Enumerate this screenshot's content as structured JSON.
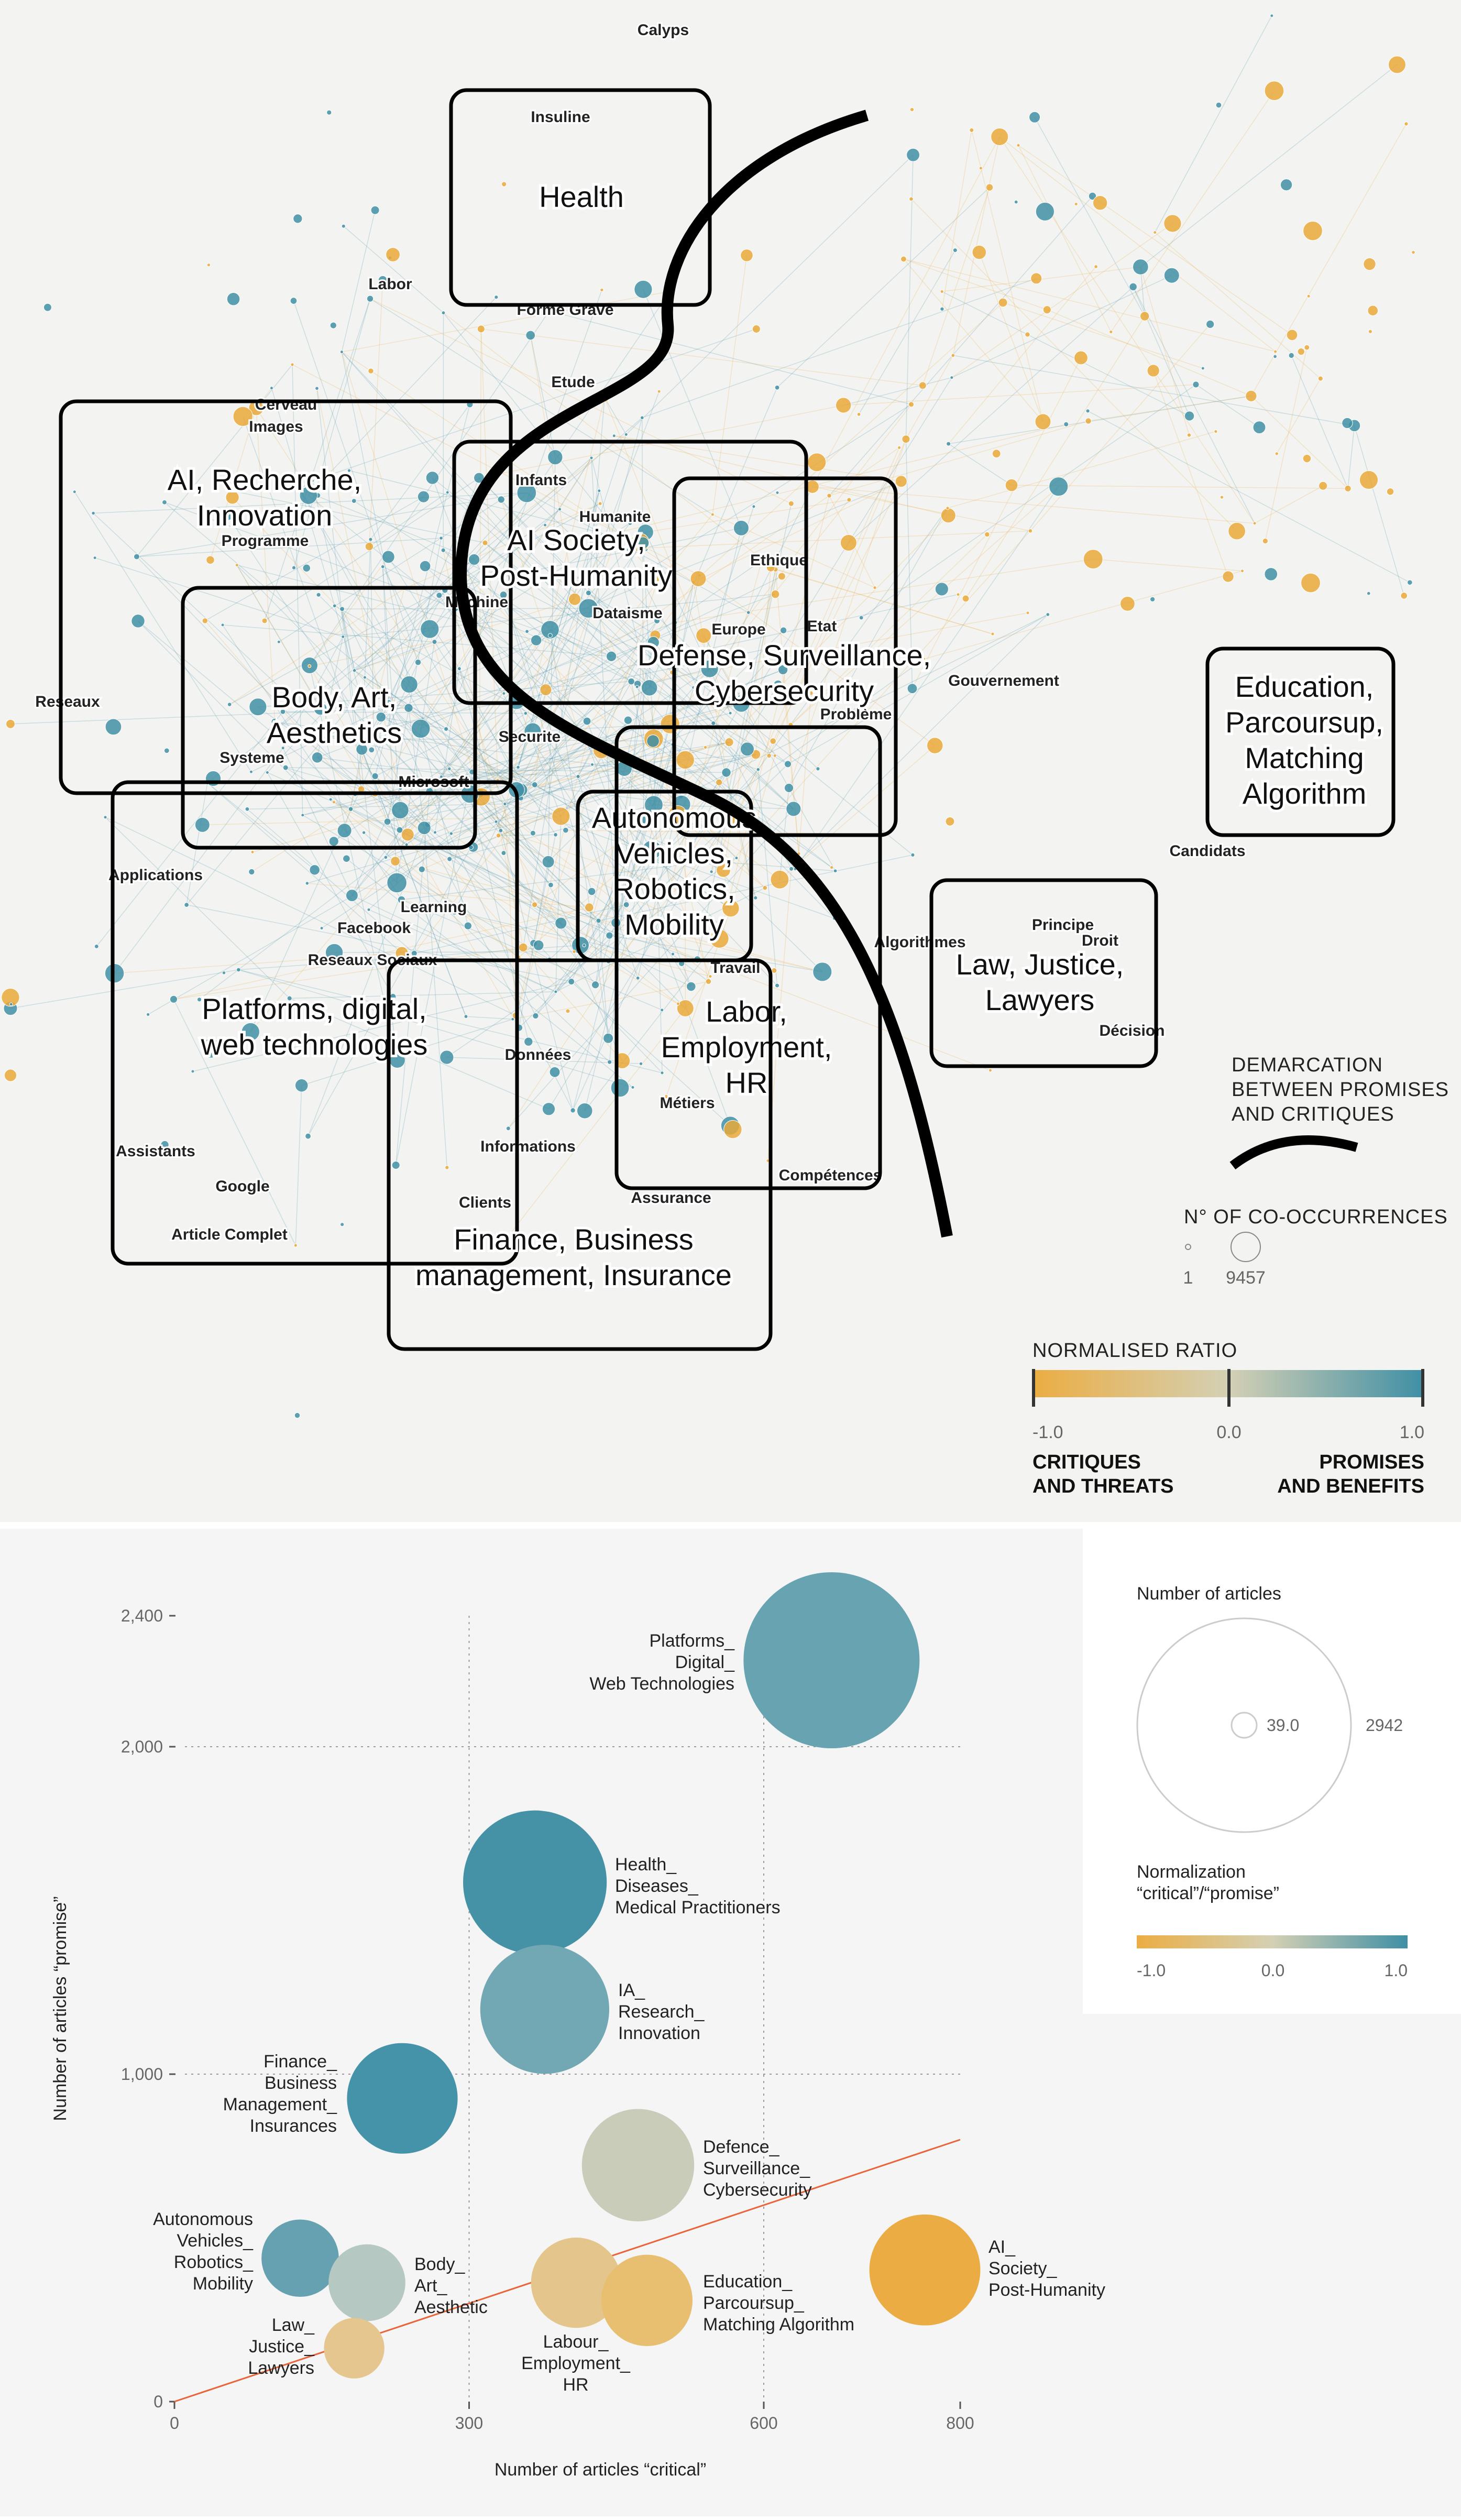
{
  "network": {
    "regions": [
      {
        "lines": [
          "Health"
        ]
      },
      {
        "lines": [
          "AI, Recherche,",
          "Innovation"
        ]
      },
      {
        "lines": [
          "AI Society,",
          "Post-Humanity"
        ]
      },
      {
        "lines": [
          "Defense, Surveillance,",
          "Cybersecurity"
        ]
      },
      {
        "lines": [
          "Body, Art,",
          "Aesthetics"
        ]
      },
      {
        "lines": [
          "Education,",
          "Parcoursup,",
          "Matching",
          "Algorithm"
        ]
      },
      {
        "lines": [
          "Autonomous",
          "Vehicles,",
          "Robotics,",
          "Mobility"
        ]
      },
      {
        "lines": [
          "Law, Justice,",
          "Lawyers"
        ]
      },
      {
        "lines": [
          "Platforms, digital,",
          "web technologies"
        ]
      },
      {
        "lines": [
          "Labor,",
          "Employment,",
          "HR"
        ]
      },
      {
        "lines": [
          "Finance, Business",
          "management, Insurance"
        ]
      }
    ],
    "keywords": [
      "Calyps",
      "Insuline",
      "Labor",
      "Forme Grave",
      "Etude",
      "Cerveau",
      "Images",
      "Infants",
      "Humanite",
      "Ethique",
      "Programme",
      "Machine",
      "Dataisme",
      "Europe",
      "Etat",
      "Reseaux",
      "Problème",
      "Securite",
      "Systeme",
      "Microsoft",
      "Gouvernement",
      "Candidats",
      "Applications",
      "Facebook",
      "Learning",
      "Reseaux Sociaux",
      "Travail",
      "Algorithmes",
      "Principe",
      "Droit",
      "Décision",
      "Données",
      "Métiers",
      "Assistants",
      "Informations",
      "Compétences",
      "Google",
      "Assurance",
      "Clients",
      "Article Complet"
    ],
    "colors": {
      "promise": "#3f8fa5",
      "critique": "#e9a83a",
      "neutral": "#c8ccb8"
    },
    "legend": {
      "demarcation": [
        "DEMARCATION",
        "BETWEEN PROMISES",
        "AND CRITIQUES"
      ],
      "cooccurrence_title": "N° OF CO-OCCURRENCES",
      "cooccurrence_min": "1",
      "cooccurrence_max": "9457",
      "ratio_title": "NORMALISED RATIO",
      "ratio_ticks": [
        "-1.0",
        "0.0",
        "1.0"
      ],
      "left_caption": [
        "CRITIQUES",
        "AND THREATS"
      ],
      "right_caption": [
        "PROMISES",
        "AND BENEFITS"
      ]
    }
  },
  "chart_data": {
    "type": "scatter",
    "xlabel": "Number of articles “critical”",
    "ylabel": "Number of articles “promise”",
    "xlim": [
      0,
      800
    ],
    "ylim": [
      0,
      2400
    ],
    "xticks": [
      "0",
      "300",
      "600",
      "800"
    ],
    "xtick_values": [
      0,
      300,
      600,
      800
    ],
    "yticks": [
      "0",
      "1,000",
      "2,000",
      "2,400"
    ],
    "ytick_values": [
      0,
      1000,
      2000,
      2400
    ],
    "grid": "dotted at x=300,600 and y=1000,2000",
    "reference_line": {
      "from": [
        0,
        0
      ],
      "to": [
        800,
        800
      ],
      "color": "#e8643a"
    },
    "points": [
      {
        "label": [
          "Platforms_",
          "Digital_",
          "Web Technologies"
        ],
        "critical": 669,
        "promise": 2264,
        "color": "#67a3b1"
      },
      {
        "label": [
          "Health_",
          "Diseases_",
          "Medical Practitioners"
        ],
        "critical": 367,
        "promise": 1586,
        "color": "#4592a7"
      },
      {
        "label": [
          "IA_",
          "Research_",
          "Innovation"
        ],
        "critical": 377,
        "promise": 1198,
        "color": "#72a8b3"
      },
      {
        "label": [
          "Finance_",
          "Business",
          "Management_",
          "Insurances"
        ],
        "critical": 232,
        "promise": 926,
        "color": "#4493a8"
      },
      {
        "label": [
          "Defence_",
          "Surveillance_",
          "Cybersecurity"
        ],
        "critical": 472,
        "promise": 722,
        "color": "#c8ccb8"
      },
      {
        "label": [
          "Autonomous",
          "Vehicles_",
          "Robotics_",
          "Mobility"
        ],
        "critical": 128,
        "promise": 438,
        "color": "#65a1b0"
      },
      {
        "label": [
          "Body_",
          "Art_",
          "Aesthetic"
        ],
        "critical": 196,
        "promise": 363,
        "color": "#b5c8c2"
      },
      {
        "label": [
          "Law_",
          "Justice_",
          "Lawyers"
        ],
        "critical": 183,
        "promise": 163,
        "color": "#e5c68f"
      },
      {
        "label": [
          "Labour_",
          "Employment_",
          "HR"
        ],
        "critical": 409,
        "promise": 363,
        "color": "#e4c68c"
      },
      {
        "label": [
          "Education_",
          "Parcoursup_",
          "Matching Algorithm"
        ],
        "critical": 481,
        "promise": 309,
        "color": "#e8bf71"
      },
      {
        "label": [
          "AI_",
          "Society_",
          "Post-Humanity"
        ],
        "critical": 764,
        "promise": 402,
        "color": "#ebad43"
      }
    ],
    "legend": {
      "size_title": "Number of articles",
      "size_min": "39.0",
      "size_max": "2942",
      "color_title": [
        "Normalization",
        "“critical”/“promise”"
      ],
      "color_ticks": [
        "-1.0",
        "0.0",
        "1.0"
      ],
      "gradient": [
        "#ebad43",
        "#d9d0b0",
        "#3f8fa5"
      ]
    }
  }
}
